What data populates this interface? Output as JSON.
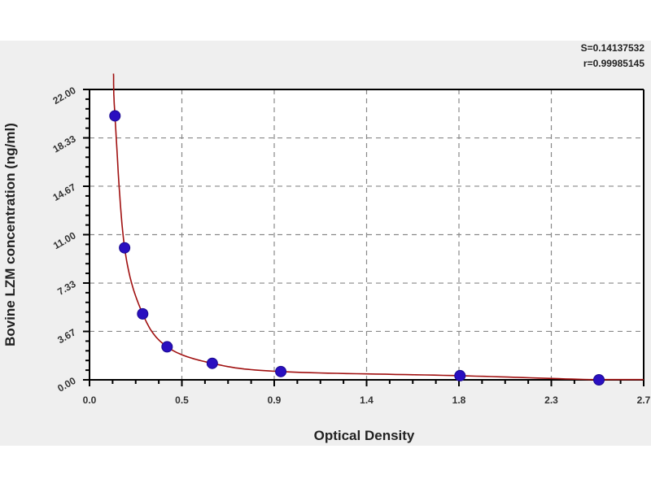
{
  "chart_data": {
    "type": "scatter",
    "title": "",
    "xlabel": "Optical Density",
    "ylabel": "Bovine LZM concentration (ng/ml)",
    "xlim": [
      0,
      2.7
    ],
    "ylim": [
      0,
      22
    ],
    "x_ticks": [
      0,
      0.45,
      0.9,
      1.35,
      1.8,
      2.25,
      2.7
    ],
    "x_tick_labels": [
      "0.0",
      "0.5",
      "0.9",
      "1.4",
      "1.8",
      "2.3",
      "2.7"
    ],
    "y_ticks": [
      0,
      3.67,
      7.33,
      11,
      14.67,
      18.33,
      22
    ],
    "y_tick_labels": [
      "0.00",
      "3.67",
      "7.33",
      "11.00",
      "14.67",
      "18.33",
      "22.00"
    ],
    "grid": true,
    "points": {
      "x": [
        0.124,
        0.171,
        0.259,
        0.378,
        0.598,
        0.932,
        1.805,
        2.482
      ],
      "y": [
        20,
        10,
        5,
        2.5,
        1.25,
        0.625,
        0.312,
        0
      ]
    },
    "fit_curve": true,
    "stats": {
      "s": "S=0.14137532",
      "r": "r=0.99985145"
    },
    "colors": {
      "points": "#2a0fc0",
      "curve": "#a01010",
      "grid": "#888888",
      "background": "#efefef"
    }
  }
}
